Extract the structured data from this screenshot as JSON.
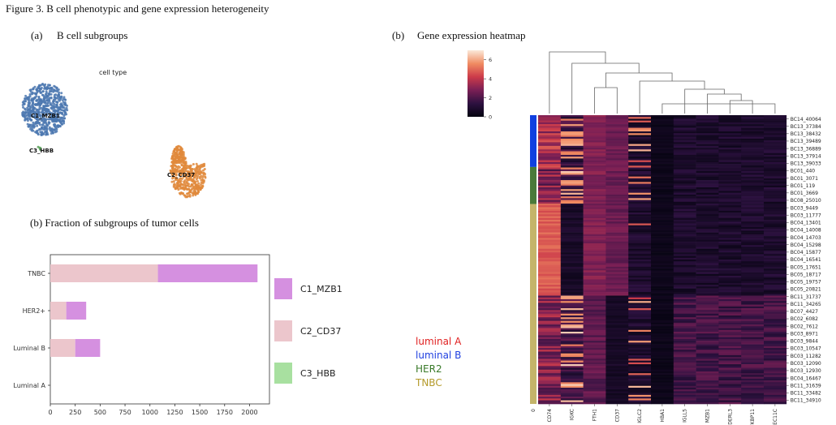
{
  "figure": {
    "title": "Figure 3. B cell phenotypic and gene expression heterogeneity"
  },
  "panels": {
    "a": {
      "letter": "(a)",
      "title": "B cell subgroups",
      "legend_title": "cell type",
      "clusters": [
        {
          "name": "C1_MZB1",
          "color": "#4c78b0"
        },
        {
          "name": "C3_HBB",
          "color": "#5aa05a"
        },
        {
          "name": "C2_CD37",
          "color": "#e08a3c"
        }
      ]
    },
    "b_fraction": {
      "title": "(b) Fraction of subgroups of tumor cells"
    },
    "b_heatmap": {
      "letter": "(b)",
      "title": "Gene expression heatmap"
    }
  },
  "chart_data": [
    {
      "type": "bar",
      "orientation": "horizontal",
      "stacked": true,
      "categories": [
        "TNBC",
        "HER2+",
        "Luminal B",
        "Luminal A"
      ],
      "series": [
        {
          "name": "C2_CD37",
          "color": "#ecc6cc",
          "values": [
            1080,
            160,
            250,
            0
          ]
        },
        {
          "name": "C1_MZB1",
          "color": "#d590e0",
          "values": [
            1000,
            200,
            250,
            0
          ]
        },
        {
          "name": "C3_HBB",
          "color": "#a8e0a0",
          "values": [
            0,
            0,
            0,
            0
          ]
        }
      ],
      "legend_order": [
        "C1_MZB1",
        "C2_CD37",
        "C3_HBB"
      ],
      "xticks": [
        "0",
        "250",
        "500",
        "750",
        "1000",
        "1250",
        "1500",
        "1750",
        "2000"
      ],
      "xlim": [
        0,
        2200
      ],
      "legend_position": "right"
    },
    {
      "type": "heatmap",
      "genes": [
        "CD74",
        "IGKC",
        "FTH1",
        "CD37",
        "IGLC2",
        "HBA1",
        "IGLL5",
        "MZB1",
        "DERL3",
        "FKBP11",
        "SEC11C"
      ],
      "first_column_label": "0",
      "colorbar_ticks": [
        "6",
        "4",
        "2",
        "0"
      ],
      "colorbar_range": [
        0,
        7
      ],
      "row_labels": [
        "BC14_40064",
        "BC13_37384",
        "BC13_38432",
        "BC13_39489",
        "BC13_36889",
        "BC13_37914",
        "BC13_39033",
        "BC01_440",
        "BC01_3071",
        "BC01_119",
        "BC01_3669",
        "BC08_25010",
        "BC03_9449",
        "BC03_11777",
        "BC04_13401",
        "BC04_14008",
        "BC04_14703",
        "BC04_15298",
        "BC04_15877",
        "BC04_16541",
        "BC05_17651",
        "BC05_18717",
        "BC05_19757",
        "BC05_20821",
        "BC11_31737",
        "BC11_34265",
        "BC07_4427",
        "BC02_6082",
        "BC02_7612",
        "BC03_8971",
        "BC03_9844",
        "BC03_10547",
        "BC03_11282",
        "BC03_12090",
        "BC03_12930",
        "BC04_16467",
        "BC11_31639",
        "BC11_33482",
        "BC11_34910"
      ],
      "subtype_groups": [
        {
          "name": "luminal B",
          "color": "#1040e0",
          "rows": 7
        },
        {
          "name": "HER2",
          "color": "#4a7a3a",
          "rows": 5
        },
        {
          "name": "TNBC",
          "color": "#c4b46a",
          "rows": 27
        }
      ],
      "subtype_legend": [
        {
          "name": "luminal A",
          "color": "#e02020"
        },
        {
          "name": "luminal B",
          "color": "#2040e0"
        },
        {
          "name": "HER2",
          "color": "#3a7a2a"
        },
        {
          "name": "TNBC",
          "color": "#b49a2a"
        }
      ]
    }
  ]
}
